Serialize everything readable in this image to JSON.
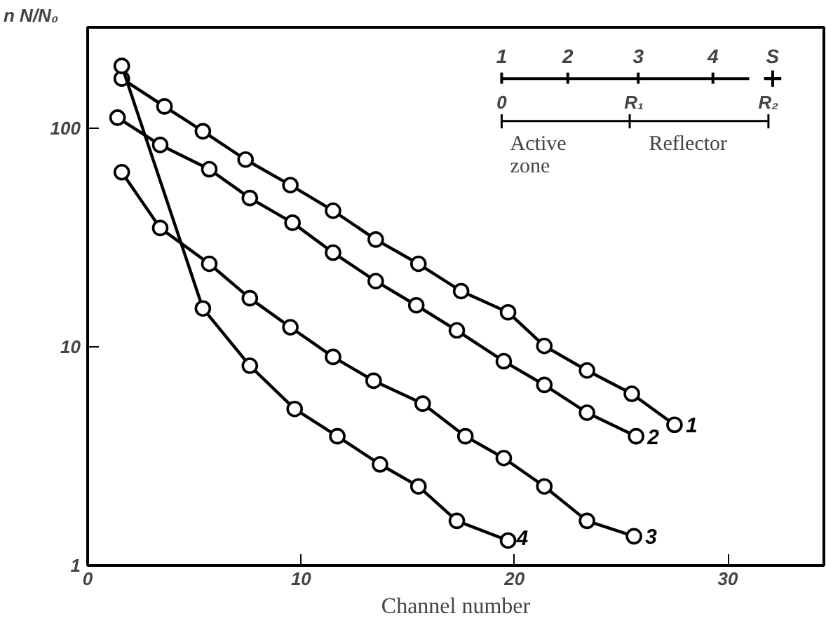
{
  "chart_data": {
    "type": "line",
    "xlabel": "Channel number",
    "ylabel": "n N/N₀",
    "log": "y",
    "xlim": [
      0,
      34.5
    ],
    "ylim": [
      1,
      290
    ],
    "xticks": [
      0,
      10,
      20,
      30
    ],
    "yticks": [
      1,
      10,
      100
    ],
    "grid": false,
    "marker": "circle",
    "line_style": "solid",
    "series": [
      {
        "name": "1",
        "color": "#000000",
        "x": [
          1.6,
          3.6,
          5.4,
          7.4,
          9.5,
          11.5,
          13.5,
          15.5,
          17.5,
          19.7,
          21.4,
          23.4,
          25.5,
          27.5
        ],
        "values": [
          169,
          126,
          97,
          72,
          55,
          42,
          31,
          24,
          18,
          14.4,
          10.1,
          7.8,
          6.1,
          4.4
        ]
      },
      {
        "name": "2",
        "color": "#000000",
        "x": [
          1.4,
          3.4,
          5.7,
          7.6,
          9.6,
          11.5,
          13.5,
          15.4,
          17.3,
          19.5,
          21.4,
          23.4,
          25.7
        ],
        "values": [
          112,
          84,
          65,
          48,
          37,
          27,
          20,
          15.5,
          11.9,
          8.6,
          6.7,
          5.0,
          3.9
        ]
      },
      {
        "name": "3",
        "color": "#000000",
        "x": [
          1.6,
          3.4,
          5.7,
          7.6,
          9.5,
          11.5,
          13.4,
          15.7,
          17.7,
          19.5,
          21.4,
          23.4,
          25.6
        ],
        "values": [
          63,
          35,
          24,
          16.7,
          12.3,
          9.0,
          7.0,
          5.5,
          3.9,
          3.1,
          2.3,
          1.6,
          1.36
        ]
      },
      {
        "name": "4",
        "color": "#000000",
        "x": [
          1.6,
          5.4,
          7.6,
          9.7,
          11.7,
          13.7,
          15.5,
          17.3,
          19.7
        ],
        "values": [
          193,
          15.0,
          8.2,
          5.2,
          3.9,
          2.9,
          2.3,
          1.6,
          1.3
        ]
      }
    ],
    "annotations": [
      "1",
      "2",
      "3",
      "4",
      "S",
      "0",
      "R₁",
      "R₂",
      "Active\nzone",
      "Reflector"
    ]
  }
}
